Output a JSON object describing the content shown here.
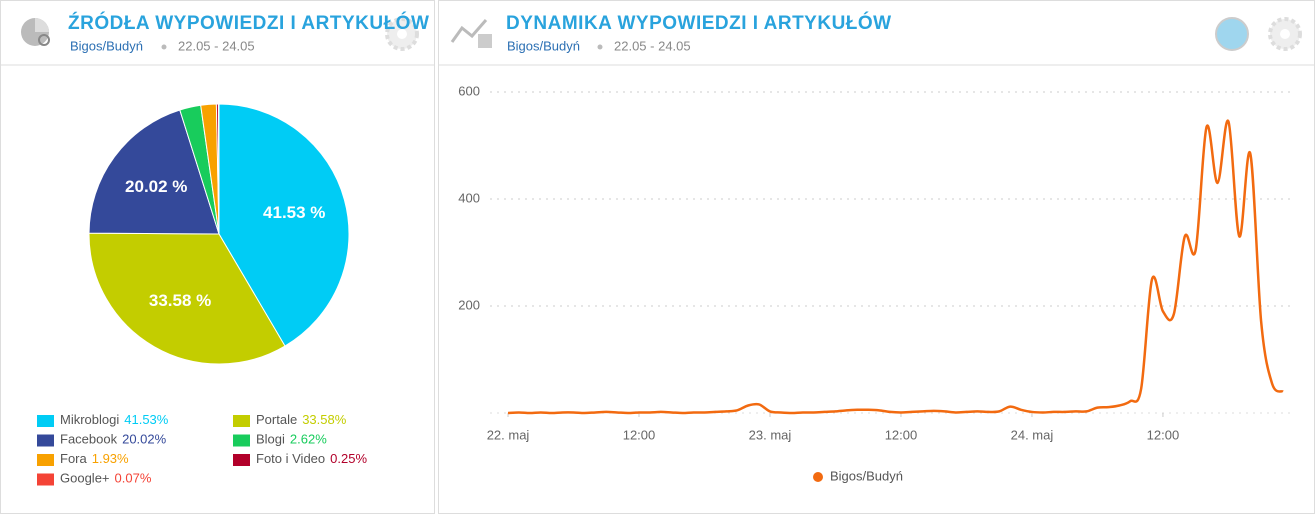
{
  "chart_data": [
    {
      "type": "pie",
      "title": "ŹRÓDŁA WYPOWIEDZI I ARTYKUŁÓW",
      "subtitle": "Bigos/Budyń",
      "date_range": "22.05 - 24.05",
      "categories": [
        "Mikroblogi",
        "Portale",
        "Facebook",
        "Blogi",
        "Fora",
        "Foto i Video",
        "Google+"
      ],
      "values": [
        41.53,
        33.58,
        20.02,
        2.62,
        1.93,
        0.25,
        0.07
      ],
      "value_labels": [
        "41.53%",
        "33.58%",
        "20.02%",
        "2.62%",
        "1.93%",
        "0.25%",
        "0.07%"
      ],
      "slice_labels": [
        "41.53 %",
        "33.58 %",
        "20.02 %",
        null,
        null,
        null,
        null
      ],
      "colors": [
        "#00ccf5",
        "#c3cd00",
        "#34499a",
        "#18cc5c",
        "#f8a100",
        "#b2002a",
        "#f44336"
      ]
    },
    {
      "type": "line",
      "title": "DYNAMIKA WYPOWIEDZI I ARTYKUŁÓW",
      "subtitle": "Bigos/Budyń",
      "date_range": "22.05 - 24.05",
      "x": [
        0,
        1,
        2,
        3,
        4,
        5,
        6,
        7,
        8,
        9,
        10,
        11,
        12,
        13,
        14,
        15,
        16,
        17,
        18,
        19,
        20,
        21,
        22,
        23,
        24,
        25,
        26,
        27,
        28,
        29,
        30,
        31,
        32,
        33,
        34,
        35,
        36,
        37,
        38,
        39,
        40,
        41,
        42,
        43,
        44,
        45,
        46,
        47,
        48,
        49,
        50,
        51,
        52,
        53,
        54,
        55,
        56,
        57,
        58,
        59,
        60,
        61,
        62,
        63,
        64,
        65,
        66,
        67,
        68,
        69,
        70,
        71
      ],
      "series": [
        {
          "name": "Bigos/Budyń",
          "color": "#f26a10",
          "values": [
            0,
            1,
            0,
            1,
            0,
            1,
            1,
            0,
            1,
            2,
            1,
            0,
            1,
            1,
            2,
            1,
            0,
            1,
            1,
            2,
            3,
            5,
            14,
            16,
            3,
            1,
            0,
            1,
            1,
            2,
            3,
            5,
            6,
            6,
            5,
            2,
            1,
            2,
            3,
            4,
            3,
            1,
            2,
            3,
            2,
            3,
            12,
            6,
            2,
            1,
            2,
            2,
            3,
            3,
            10,
            11,
            14,
            22,
            45,
            250,
            190,
            185,
            330,
            305,
            535,
            430,
            545,
            330,
            485,
            170,
            55,
            40
          ]
        }
      ],
      "xlim": [
        -1.65,
        71.64
      ],
      "xticks": [
        {
          "value": 0,
          "label": "22. maj"
        },
        {
          "value": 12,
          "label": "12:00"
        },
        {
          "value": 24,
          "label": "23. maj"
        },
        {
          "value": 36,
          "label": "12:00"
        },
        {
          "value": 48,
          "label": "24. maj"
        },
        {
          "value": 60,
          "label": "12:00"
        }
      ],
      "ylim": [
        0,
        600
      ],
      "yticks": [
        200,
        400,
        600
      ],
      "grid": true
    }
  ]
}
